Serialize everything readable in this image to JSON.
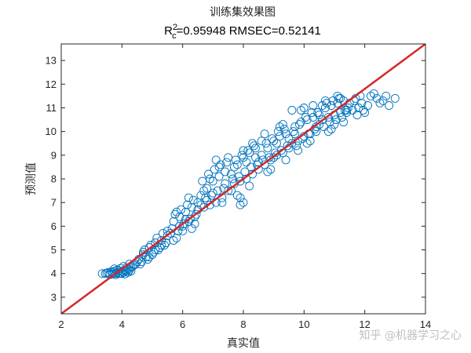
{
  "chart_data": {
    "type": "scatter",
    "title": "训练集效果图",
    "subtitle_prefix": "R",
    "subtitle_sup": "2",
    "subtitle_sub": "c",
    "subtitle_rest": "=0.95948  RMSEC=0.52141",
    "xlabel": "真实值",
    "ylabel": "预测值",
    "xlim": [
      2,
      14
    ],
    "ylim": [
      2.3,
      13.7
    ],
    "xticks": [
      "2",
      "4",
      "6",
      "8",
      "10",
      "12",
      "14"
    ],
    "yticks": [
      "3",
      "4",
      "5",
      "6",
      "7",
      "8",
      "9",
      "10",
      "11",
      "12",
      "13"
    ],
    "marker_color": "#0072BD",
    "line_color": "#D62728",
    "reference_line": {
      "x": [
        2,
        14
      ],
      "y": [
        2.3,
        13.7
      ]
    },
    "series": [
      {
        "x": [
          3.35,
          3.45,
          3.5,
          3.55,
          3.6,
          3.65,
          3.7,
          3.75,
          3.8,
          3.85,
          3.9,
          3.95,
          4.0,
          4.05,
          4.1,
          4.15,
          4.2,
          4.25,
          4.3,
          4.35,
          4.4,
          4.45,
          4.5,
          3.6,
          3.7,
          3.8,
          3.9,
          4.0,
          4.1,
          4.2,
          4.3,
          3.75,
          3.85,
          3.95,
          4.05,
          4.15,
          4.25,
          4.55,
          4.6,
          4.7,
          4.8,
          4.9,
          5.0,
          5.1,
          5.2,
          5.3,
          5.4,
          5.5,
          4.65,
          4.75,
          4.85,
          4.95,
          5.05,
          5.15,
          5.25,
          5.35,
          5.45,
          4.7,
          4.9,
          5.1,
          5.3,
          5.5,
          5.6,
          5.7,
          5.8,
          5.9,
          6.0,
          6.1,
          6.2,
          6.3,
          6.4,
          6.5,
          5.65,
          5.75,
          5.85,
          5.95,
          6.05,
          6.15,
          6.25,
          6.35,
          6.45,
          5.7,
          5.9,
          6.1,
          6.3,
          6.5,
          5.8,
          6.0,
          6.2,
          6.4,
          6.6,
          6.7,
          6.8,
          6.9,
          7.0,
          7.1,
          7.2,
          7.3,
          7.4,
          7.5,
          6.65,
          6.75,
          6.85,
          6.95,
          7.05,
          7.15,
          7.25,
          7.35,
          7.45,
          6.6,
          6.8,
          7.0,
          7.2,
          7.4,
          6.7,
          6.9,
          7.1,
          7.3,
          7.5,
          7.6,
          7.7,
          7.8,
          7.9,
          8.0,
          8.1,
          8.2,
          8.3,
          8.4,
          8.5,
          7.65,
          7.75,
          7.85,
          7.95,
          8.05,
          8.15,
          8.25,
          8.35,
          8.45,
          7.6,
          7.8,
          8.0,
          8.2,
          8.4,
          7.7,
          7.9,
          8.1,
          8.3,
          8.5,
          7.9,
          8.0,
          8.6,
          8.7,
          8.8,
          8.9,
          9.0,
          9.1,
          9.2,
          9.3,
          9.4,
          9.5,
          8.65,
          8.75,
          8.85,
          8.95,
          9.05,
          9.15,
          9.25,
          9.35,
          9.45,
          8.6,
          8.8,
          9.0,
          9.2,
          9.4,
          8.7,
          8.9,
          9.1,
          9.3,
          9.5,
          9.6,
          9.7,
          9.8,
          9.9,
          10.0,
          10.1,
          10.2,
          10.3,
          10.4,
          10.5,
          9.65,
          9.75,
          9.85,
          9.95,
          10.05,
          10.15,
          10.25,
          10.35,
          10.45,
          9.6,
          9.8,
          10.0,
          10.2,
          10.4,
          9.7,
          9.9,
          10.1,
          10.3,
          10.5,
          10.6,
          10.7,
          10.8,
          10.9,
          11.0,
          11.1,
          11.2,
          11.3,
          11.4,
          11.5,
          10.65,
          10.75,
          10.85,
          10.95,
          11.05,
          11.15,
          11.25,
          11.35,
          11.45,
          10.6,
          10.8,
          11.0,
          11.2,
          11.4,
          10.7,
          10.9,
          11.1,
          11.3,
          11.6,
          11.7,
          11.8,
          11.9,
          12.0,
          12.1,
          12.2,
          12.4,
          12.6,
          12.8,
          13.0,
          11.65,
          11.75,
          11.85,
          11.95,
          12.3,
          12.5,
          12.7
        ],
        "y": [
          4.0,
          4.0,
          4.02,
          4.05,
          4.0,
          4.08,
          4.03,
          4.1,
          4.0,
          4.05,
          4.12,
          4.0,
          4.1,
          4.05,
          4.15,
          4.1,
          4.2,
          4.15,
          4.25,
          4.3,
          4.35,
          4.4,
          4.5,
          3.95,
          3.98,
          3.95,
          4.0,
          4.0,
          3.98,
          4.05,
          4.1,
          4.2,
          4.15,
          4.22,
          4.3,
          4.25,
          4.4,
          4.6,
          4.4,
          4.9,
          4.7,
          5.1,
          4.8,
          5.3,
          5.0,
          5.4,
          5.2,
          5.6,
          4.5,
          5.0,
          4.6,
          5.2,
          4.9,
          5.5,
          5.1,
          5.7,
          5.3,
          4.8,
          4.7,
          5.0,
          5.2,
          5.8,
          5.7,
          6.2,
          5.5,
          6.4,
          6.0,
          6.6,
          6.2,
          6.8,
          6.4,
          7.0,
          5.9,
          6.5,
          5.8,
          6.7,
          6.1,
          6.9,
          6.3,
          7.1,
          6.5,
          5.4,
          6.0,
          6.3,
          5.9,
          6.7,
          6.6,
          5.8,
          7.2,
          6.1,
          7.3,
          6.8,
          7.6,
          6.9,
          7.9,
          7.0,
          8.1,
          7.2,
          8.3,
          7.5,
          7.9,
          7.2,
          8.2,
          7.3,
          8.4,
          7.5,
          8.6,
          7.6,
          8.7,
          6.9,
          7.1,
          7.4,
          8.5,
          7.8,
          7.5,
          8.0,
          8.8,
          7.0,
          8.9,
          8.2,
          7.8,
          8.6,
          7.9,
          8.9,
          8.0,
          9.1,
          8.2,
          9.3,
          8.4,
          8.0,
          8.8,
          8.1,
          9.0,
          8.3,
          9.2,
          8.5,
          9.4,
          8.6,
          7.5,
          7.3,
          9.2,
          7.7,
          8.9,
          8.5,
          7.2,
          8.7,
          9.5,
          8.7,
          6.9,
          7.0,
          9.0,
          8.6,
          9.3,
          8.8,
          9.6,
          9.0,
          9.8,
          9.1,
          9.9,
          9.3,
          8.8,
          9.5,
          8.9,
          9.7,
          9.1,
          10.0,
          9.2,
          10.1,
          9.4,
          9.6,
          8.3,
          8.9,
          10.2,
          8.8,
          9.9,
          8.4,
          9.5,
          10.3,
          9.7,
          9.5,
          10.2,
          9.6,
          10.4,
          9.8,
          10.5,
          9.9,
          10.6,
          10.0,
          10.7,
          10.0,
          9.4,
          10.3,
          9.7,
          10.6,
          9.9,
          10.8,
          10.1,
          10.8,
          10.9,
          9.2,
          11.0,
          9.6,
          10.2,
          9.9,
          10.9,
          9.5,
          11.1,
          10.3,
          10.5,
          11.0,
          10.6,
          11.1,
          10.7,
          11.2,
          10.8,
          11.3,
          10.9,
          11.2,
          10.2,
          11.2,
          10.4,
          11.3,
          10.5,
          11.4,
          10.6,
          10.9,
          11.0,
          11.1,
          10.0,
          10.3,
          11.4,
          10.8,
          11.3,
          10.1,
          11.5,
          10.4,
          10.9,
          11.4,
          11.0,
          11.2,
          10.8,
          11.1,
          11.5,
          11.4,
          11.3,
          11.1,
          11.4,
          11.3,
          10.7,
          11.5,
          10.9,
          11.6,
          11.2,
          11.5
        ]
      }
    ]
  },
  "watermark": "知乎 @机器学习之心"
}
